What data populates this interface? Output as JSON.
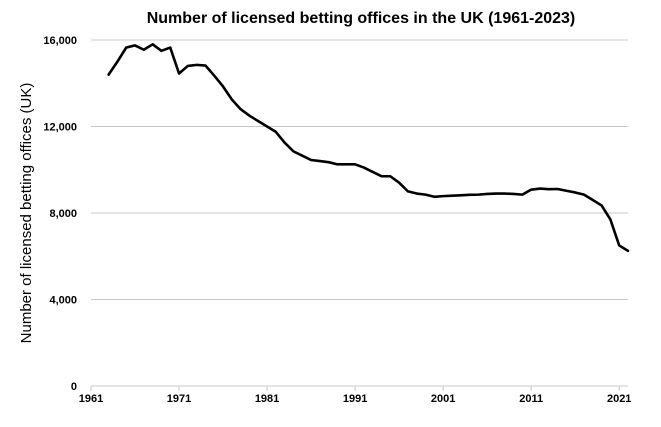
{
  "chart_data": {
    "type": "line",
    "title": "Number of licensed betting offices in the UK (1961-2023)",
    "xlabel": "",
    "ylabel": "Number of licensed betting offices (UK)",
    "xlim": [
      1961,
      2022
    ],
    "ylim": [
      0,
      16000
    ],
    "x_ticks": [
      1961,
      1971,
      1981,
      1991,
      2001,
      2011,
      2021
    ],
    "y_ticks": [
      0,
      4000,
      8000,
      12000,
      16000
    ],
    "y_tick_labels": [
      "0",
      "4,000",
      "8,000",
      "12,000",
      "16,000"
    ],
    "grid": true,
    "series": [
      {
        "color": "#000000",
        "x": [
          1963,
          1964,
          1965,
          1966,
          1967,
          1968,
          1969,
          1970,
          1971,
          1972,
          1973,
          1974,
          1975,
          1976,
          1977,
          1978,
          1979,
          1980,
          1981,
          1982,
          1983,
          1984,
          1985,
          1986,
          1987,
          1988,
          1989,
          1990,
          1991,
          1992,
          1993,
          1994,
          1995,
          1996,
          1997,
          1998,
          1999,
          2000,
          2001,
          2002,
          2003,
          2004,
          2005,
          2006,
          2007,
          2008,
          2009,
          2010,
          2011,
          2012,
          2013,
          2014,
          2015,
          2016,
          2017,
          2018,
          2019,
          2020,
          2021,
          2022
        ],
        "values": [
          14400,
          15000,
          15650,
          15750,
          15550,
          15800,
          15500,
          15650,
          14450,
          14800,
          14850,
          14820,
          14350,
          13850,
          13250,
          12800,
          12500,
          12250,
          12000,
          11750,
          11250,
          10850,
          10650,
          10450,
          10400,
          10350,
          10250,
          10250,
          10250,
          10100,
          9900,
          9700,
          9700,
          9400,
          9000,
          8900,
          8850,
          8750,
          8780,
          8800,
          8820,
          8840,
          8850,
          8880,
          8900,
          8900,
          8880,
          8850,
          9080,
          9130,
          9100,
          9110,
          9030,
          8950,
          8850,
          8600,
          8350,
          7700,
          6500,
          6250
        ]
      }
    ]
  }
}
